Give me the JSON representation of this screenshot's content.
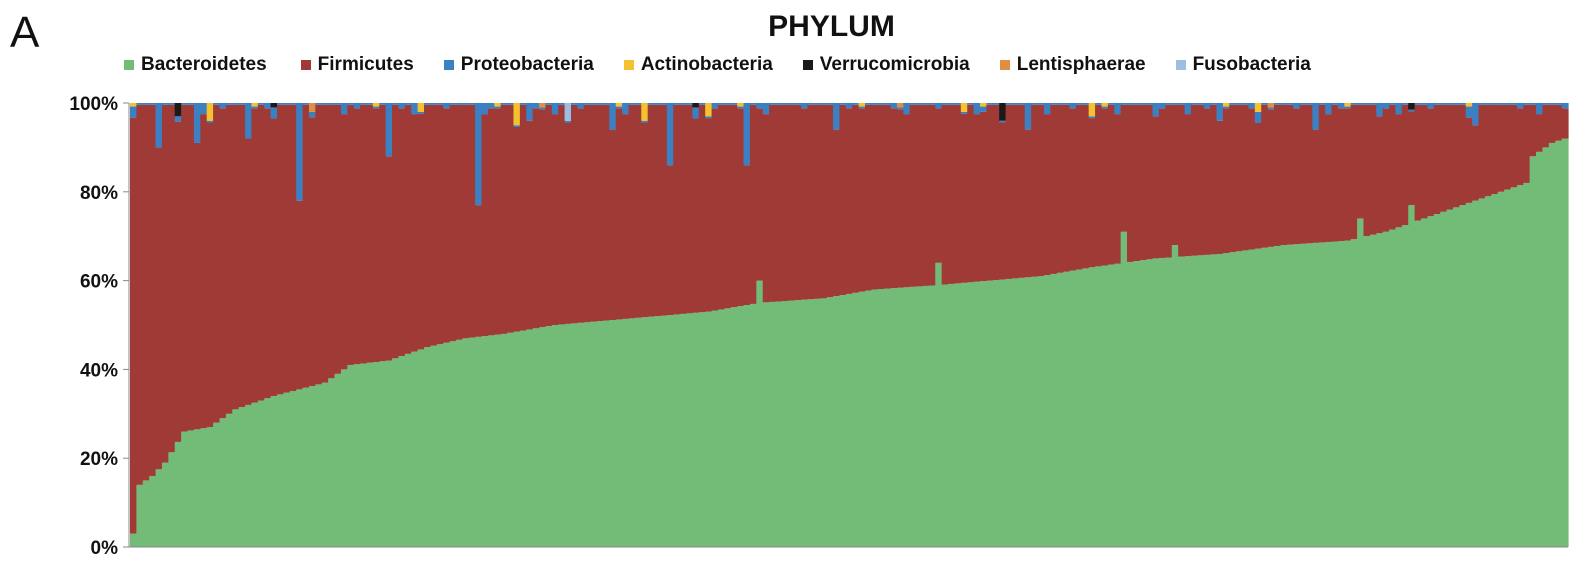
{
  "panel_label": "A",
  "chart_data": {
    "type": "bar",
    "stacked": true,
    "title": "PHYLUM",
    "xlabel": "",
    "ylabel": "",
    "ylim": [
      0,
      100
    ],
    "y_ticks": [
      "0%",
      "20%",
      "40%",
      "60%",
      "80%",
      "100%"
    ],
    "y_tick_values": [
      0,
      20,
      40,
      60,
      80,
      100
    ],
    "legend_position": "top",
    "grid": false,
    "series": [
      {
        "name": "Bacteroidetes",
        "color": "#72BC78"
      },
      {
        "name": "Firmicutes",
        "color": "#A03A37"
      },
      {
        "name": "Proteobacteria",
        "color": "#3B80C3"
      },
      {
        "name": "Actinobacteria",
        "color": "#F4C22E"
      },
      {
        "name": "Verrucomicrobia",
        "color": "#1A1A1A"
      },
      {
        "name": "Lentisphaerae",
        "color": "#E08E43"
      },
      {
        "name": "Fusobacteria",
        "color": "#9EBDE2"
      }
    ],
    "bacteroidetes_profile": [
      [
        0,
        3
      ],
      [
        1,
        14
      ],
      [
        3,
        16
      ],
      [
        5,
        19
      ],
      [
        8,
        26
      ],
      [
        12,
        27
      ],
      [
        16,
        31
      ],
      [
        22,
        34
      ],
      [
        30,
        37
      ],
      [
        34,
        41
      ],
      [
        40,
        42
      ],
      [
        46,
        45
      ],
      [
        52,
        47
      ],
      [
        58,
        48
      ],
      [
        66,
        50
      ],
      [
        74,
        51
      ],
      [
        82,
        52
      ],
      [
        90,
        53
      ],
      [
        98,
        55
      ],
      [
        108,
        56
      ],
      [
        116,
        58
      ],
      [
        126,
        59
      ],
      [
        134,
        60
      ],
      [
        142,
        61
      ],
      [
        150,
        63
      ],
      [
        160,
        65
      ],
      [
        170,
        66
      ],
      [
        180,
        68
      ],
      [
        190,
        69
      ],
      [
        196,
        71
      ],
      [
        200,
        73
      ],
      [
        206,
        76
      ],
      [
        212,
        79
      ],
      [
        218,
        82
      ],
      [
        219,
        88
      ],
      [
        222,
        91
      ],
      [
        224,
        92
      ]
    ],
    "bacteroidetes_spikes": [
      [
        98,
        60
      ],
      [
        126,
        64
      ],
      [
        155,
        71
      ],
      [
        163,
        68
      ],
      [
        192,
        74
      ],
      [
        200,
        77
      ]
    ],
    "proteobacteria_spikes": [
      [
        26,
        22
      ],
      [
        54,
        23
      ],
      [
        84,
        14
      ],
      [
        96,
        14
      ],
      [
        62,
        4
      ],
      [
        4,
        10
      ],
      [
        10,
        9
      ],
      [
        18,
        8
      ],
      [
        40,
        12
      ],
      [
        75,
        6
      ],
      [
        110,
        6
      ],
      [
        140,
        6
      ],
      [
        170,
        4
      ],
      [
        210,
        5
      ],
      [
        160,
        3
      ],
      [
        185,
        6
      ],
      [
        195,
        3
      ]
    ],
    "actinobacteria_spikes": [
      [
        12,
        4
      ],
      [
        60,
        5
      ],
      [
        80,
        4
      ],
      [
        90,
        3
      ],
      [
        45,
        2
      ],
      [
        130,
        2
      ],
      [
        150,
        3
      ],
      [
        176,
        2
      ]
    ],
    "verrucomicrobia_spikes": [
      [
        7,
        3
      ],
      [
        136,
        4
      ],
      [
        200,
        1.5
      ],
      [
        22,
        1
      ],
      [
        88,
        1
      ]
    ],
    "lentisphaerae_spikes": [
      [
        28,
        2
      ],
      [
        64,
        1
      ],
      [
        120,
        1
      ],
      [
        178,
        1
      ]
    ],
    "fusobacteria_spikes": [
      [
        68,
        4
      ]
    ],
    "sample_count": 225
  }
}
